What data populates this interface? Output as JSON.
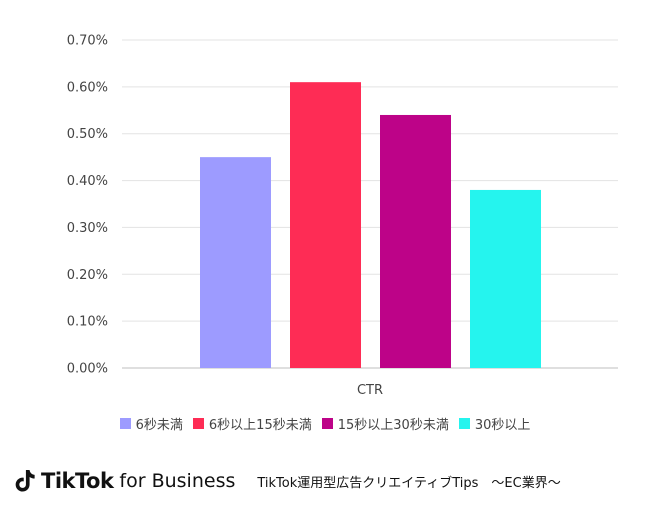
{
  "chart_data": {
    "type": "bar",
    "categories": [
      "CTR"
    ],
    "series": [
      {
        "name": "6秒未満",
        "values": [
          0.45
        ],
        "color": "#9d9bff"
      },
      {
        "name": "6秒以上15秒未満",
        "values": [
          0.61
        ],
        "color": "#fe2c55"
      },
      {
        "name": "15秒以上30秒未満",
        "values": [
          0.54
        ],
        "color": "#bd0388"
      },
      {
        "name": "30秒以上",
        "values": [
          0.38
        ],
        "color": "#25f4ee"
      }
    ],
    "y_ticks": [
      "0.00%",
      "0.10%",
      "0.20%",
      "0.30%",
      "0.40%",
      "0.50%",
      "0.60%",
      "0.70%"
    ],
    "ylim": [
      0,
      0.7
    ],
    "grid": true,
    "legend_position": "bottom"
  },
  "footer": {
    "brand": "TikTok",
    "brand_suffix": "for Business",
    "title": "TikTok運用型広告クリエイティブTips　～EC業界～"
  },
  "icons": {
    "logo": "tiktok-note-icon"
  }
}
